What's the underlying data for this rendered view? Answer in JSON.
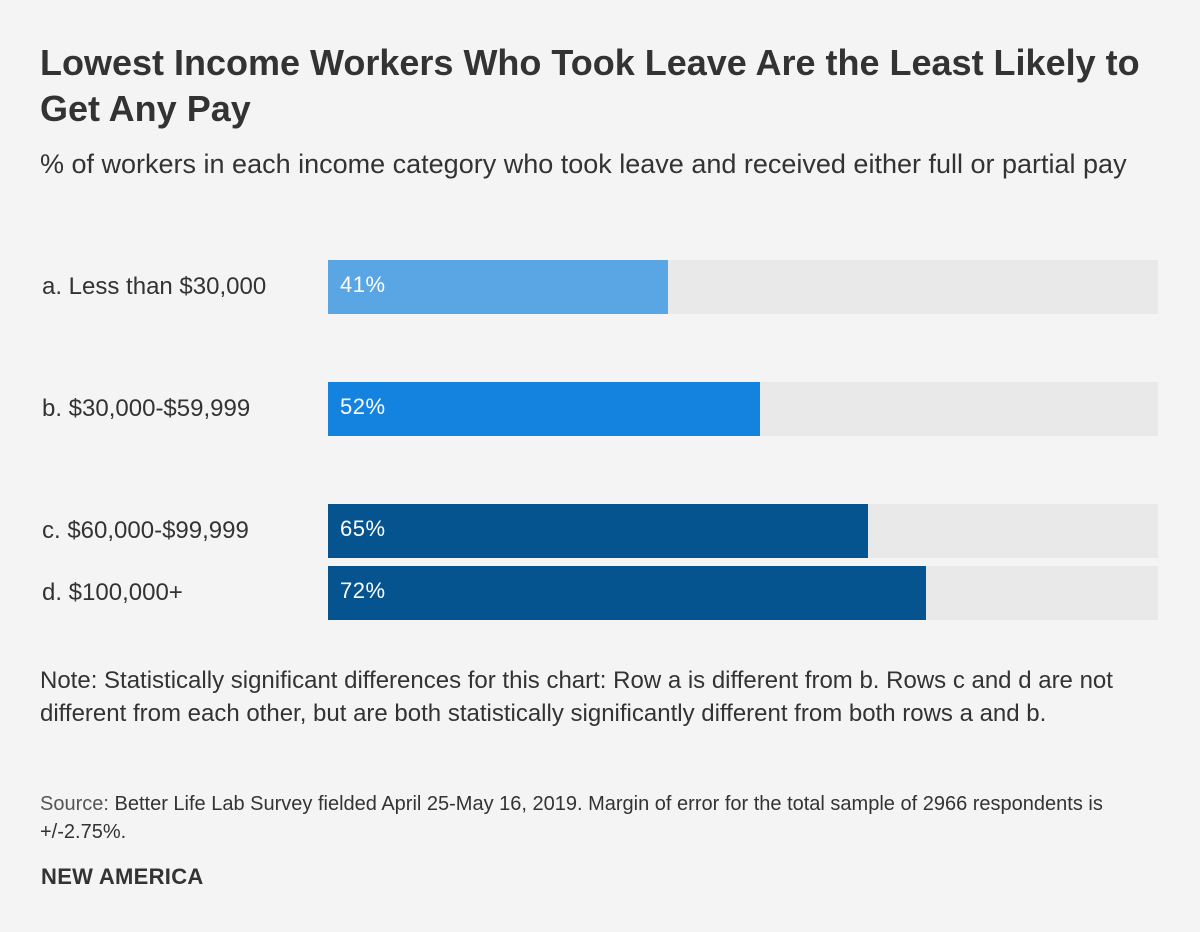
{
  "chart_data": {
    "type": "bar",
    "orientation": "horizontal",
    "title": "Lowest Income Workers Who Took Leave Are the Least Likely to Get Any Pay",
    "subtitle": "% of workers in each income category who took leave and received either full or partial pay",
    "categories": [
      "a. Less than $30,000",
      "b. $30,000-$59,999",
      "c. $60,000-$99,999",
      "d. $100,000+"
    ],
    "values": [
      41,
      52,
      65,
      72
    ],
    "value_labels": [
      "41%",
      "52%",
      "65%",
      "72%"
    ],
    "colors": [
      "#5aa5e4",
      "#1483e0",
      "#05548f",
      "#05548f"
    ],
    "xlim": [
      0,
      100
    ],
    "xlabel": "",
    "ylabel": "",
    "grid": false
  },
  "note": "Note: Statistically significant differences for this chart: Row a is different from b. Rows c and d are not different from each other, but are both statistically significantly different from both rows a and b.",
  "source": {
    "prefix": "Source:",
    "text": " Better Life Lab Survey fielded April 25-May 16, 2019. Margin of error for the total sample of 2966 respondents is +/-2.75%."
  },
  "brand": "NEW AMERICA",
  "colors": {
    "background": "#f4f4f4",
    "track": "#e9e9e9",
    "text": "#333333"
  }
}
